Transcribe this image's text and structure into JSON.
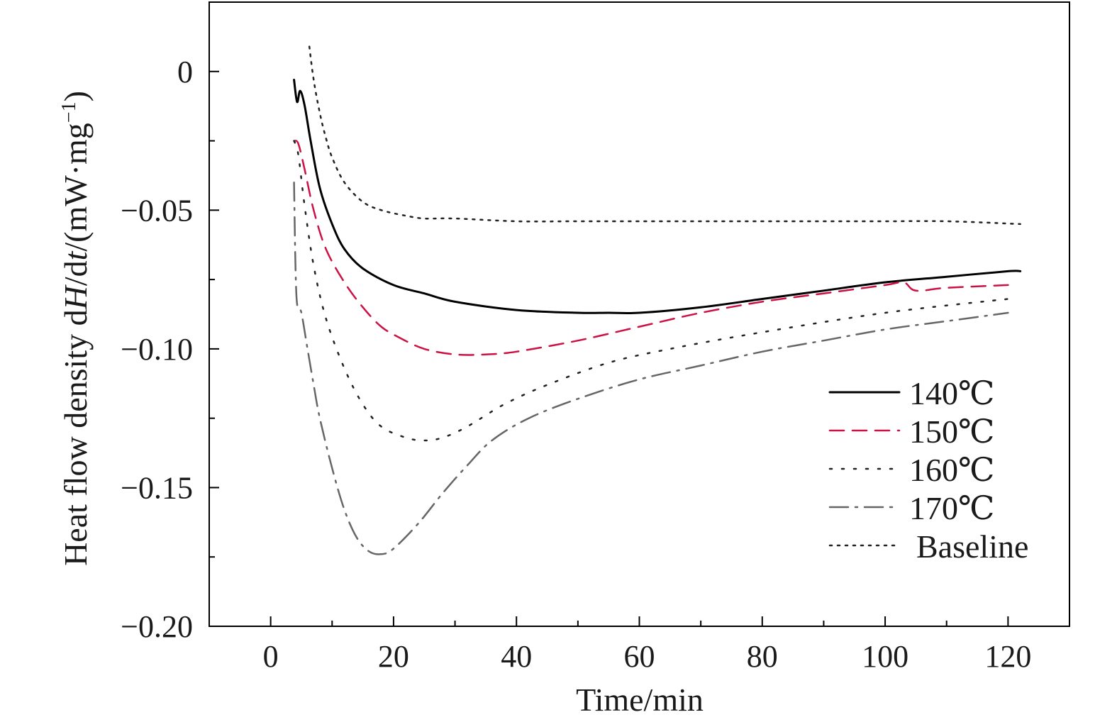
{
  "chart_data": {
    "type": "line",
    "xlabel": "Time/min",
    "ylabel": {
      "prefix": "Heat flow density d",
      "h": "H",
      "mid": "/d",
      "t": "t",
      "unit_open": "/(mW·mg",
      "sup": "−1",
      "unit_close": ")"
    },
    "xlim": [
      -10,
      130
    ],
    "ylim": [
      -0.2,
      0.025
    ],
    "x_ticks": [
      0,
      20,
      40,
      60,
      80,
      100,
      120
    ],
    "x_tick_labels": [
      "0",
      "20",
      "40",
      "60",
      "80",
      "100",
      "120"
    ],
    "y_ticks": [
      0,
      -0.05,
      -0.1,
      -0.15,
      -0.2
    ],
    "y_tick_labels": [
      "0",
      "−0.05",
      "−0.10",
      "−0.15",
      "−0.20"
    ],
    "grid": false,
    "legend_position": "bottom-right",
    "series": [
      {
        "name": "140℃",
        "color": "#000000",
        "dash": "solid",
        "x": [
          3.8,
          4.3,
          4.8,
          5.5,
          6.5,
          8,
          10,
          12,
          15,
          20,
          25,
          30,
          40,
          50,
          55,
          60,
          70,
          80,
          90,
          100,
          110,
          120,
          122
        ],
        "y": [
          -0.003,
          -0.011,
          -0.007,
          -0.012,
          -0.025,
          -0.042,
          -0.055,
          -0.064,
          -0.071,
          -0.077,
          -0.08,
          -0.083,
          -0.086,
          -0.087,
          -0.087,
          -0.087,
          -0.085,
          -0.082,
          -0.079,
          -0.076,
          -0.074,
          -0.072,
          -0.072
        ]
      },
      {
        "name": "150℃",
        "color": "#cc1144",
        "dash": "dash",
        "x": [
          3.8,
          4.5,
          5.5,
          7,
          9,
          12,
          15,
          18,
          21,
          25,
          30,
          35,
          40,
          50,
          60,
          70,
          80,
          90,
          100,
          103,
          105,
          110,
          120
        ],
        "y": [
          -0.025,
          -0.026,
          -0.035,
          -0.05,
          -0.064,
          -0.076,
          -0.085,
          -0.092,
          -0.096,
          -0.1,
          -0.102,
          -0.102,
          -0.101,
          -0.097,
          -0.092,
          -0.087,
          -0.083,
          -0.08,
          -0.077,
          -0.076,
          -0.079,
          -0.078,
          -0.077
        ]
      },
      {
        "name": "160℃",
        "color": "#222222",
        "dash": "dot",
        "x": [
          3.8,
          4.5,
          5.5,
          7,
          9,
          12,
          15,
          18,
          22,
          25,
          28,
          32,
          38,
          45,
          55,
          65,
          80,
          100,
          120
        ],
        "y": [
          -0.025,
          -0.03,
          -0.048,
          -0.07,
          -0.089,
          -0.107,
          -0.12,
          -0.128,
          -0.132,
          -0.133,
          -0.132,
          -0.128,
          -0.12,
          -0.113,
          -0.105,
          -0.1,
          -0.094,
          -0.087,
          -0.082
        ]
      },
      {
        "name": "170℃",
        "color": "#666666",
        "dash": "dashdot",
        "x": [
          3.8,
          4.2,
          5,
          6,
          7,
          8,
          10,
          12,
          14,
          16,
          18,
          20,
          24,
          28,
          32,
          36,
          42,
          50,
          60,
          70,
          80,
          90,
          100,
          110,
          120
        ],
        "y": [
          -0.04,
          -0.081,
          -0.087,
          -0.1,
          -0.113,
          -0.125,
          -0.143,
          -0.158,
          -0.168,
          -0.173,
          -0.174,
          -0.172,
          -0.163,
          -0.152,
          -0.142,
          -0.133,
          -0.125,
          -0.118,
          -0.111,
          -0.106,
          -0.101,
          -0.097,
          -0.093,
          -0.09,
          -0.087
        ]
      },
      {
        "name": "Baseline",
        "color": "#222222",
        "dash": "finedot",
        "x": [
          6.3,
          7,
          8,
          9,
          10,
          12,
          15,
          18,
          22,
          25,
          30,
          40,
          50,
          60,
          70,
          80,
          90,
          100,
          110,
          122
        ],
        "y": [
          0.009,
          -0.003,
          -0.015,
          -0.024,
          -0.031,
          -0.04,
          -0.047,
          -0.05,
          -0.052,
          -0.053,
          -0.053,
          -0.054,
          -0.054,
          -0.054,
          -0.054,
          -0.054,
          -0.054,
          -0.054,
          -0.054,
          -0.055
        ]
      }
    ]
  }
}
